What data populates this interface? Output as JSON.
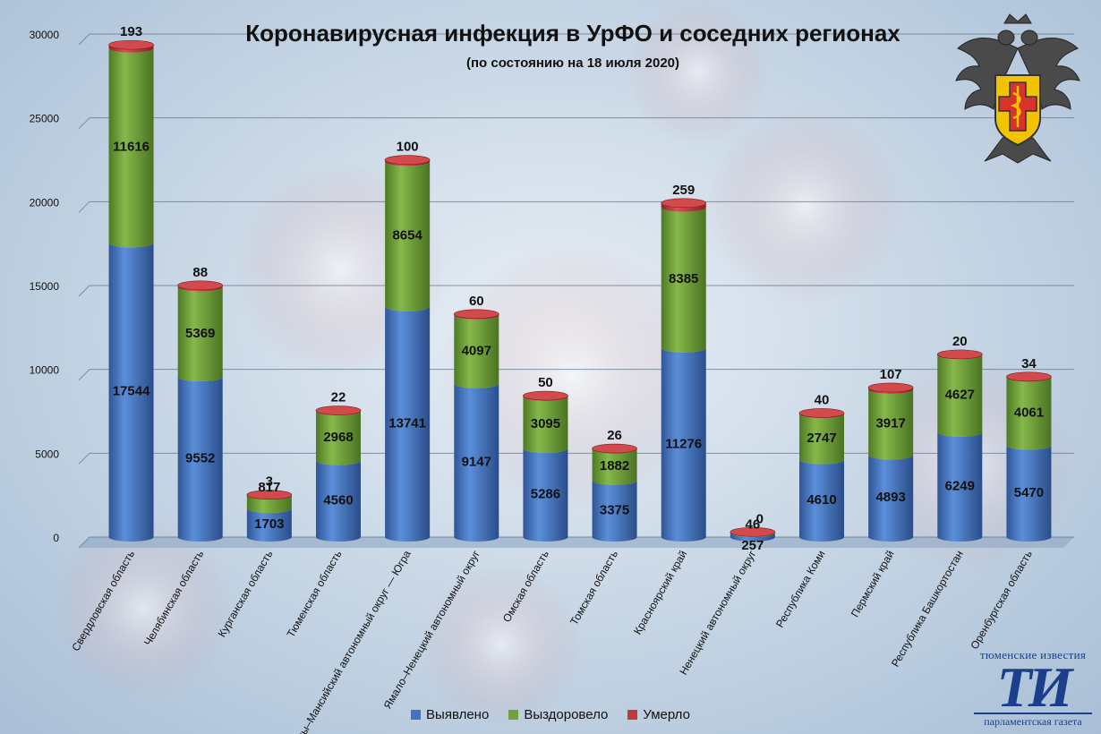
{
  "chart_data": {
    "type": "bar",
    "stacked": true,
    "title": "Коронавирусная инфекция в УрФО и соседних регионах",
    "subtitle": "(по состоянию на 18 июля 2020)",
    "ylim": [
      0,
      30000
    ],
    "yticks": [
      0,
      5000,
      10000,
      15000,
      20000,
      25000,
      30000
    ],
    "categories": [
      "Свердловская область",
      "Челябинская область",
      "Курганская область",
      "Тюменская область",
      "Ханты–Мансийский автономный округ — Югра",
      "Ямало–Ненецкий автономный округ",
      "Омская область",
      "Томская область",
      "Красноярский край",
      "Ненецкий автономный округ",
      "Республика Коми",
      "Пермский край",
      "Республика Башкортостан",
      "Оренбургская область"
    ],
    "series": [
      {
        "name": "Выявлено",
        "color": "#4472c4",
        "values": [
          17544,
          9552,
          1703,
          4560,
          13741,
          9147,
          5286,
          3375,
          11276,
          257,
          4610,
          4893,
          6249,
          5470
        ]
      },
      {
        "name": "Выздоровело",
        "color": "#71a23a",
        "values": [
          11616,
          5369,
          817,
          2968,
          8654,
          4097,
          3095,
          1882,
          8385,
          46,
          2747,
          3917,
          4627,
          4061
        ]
      },
      {
        "name": "Умерло",
        "color": "#c0393b",
        "values": [
          193,
          88,
          3,
          22,
          100,
          60,
          50,
          26,
          259,
          0,
          40,
          107,
          20,
          34
        ]
      }
    ],
    "legend": "bottom-center"
  },
  "branding": {
    "top_text": "тюменские известия",
    "logo_text": "ТИ",
    "bottom_text": "парламентская газета"
  }
}
